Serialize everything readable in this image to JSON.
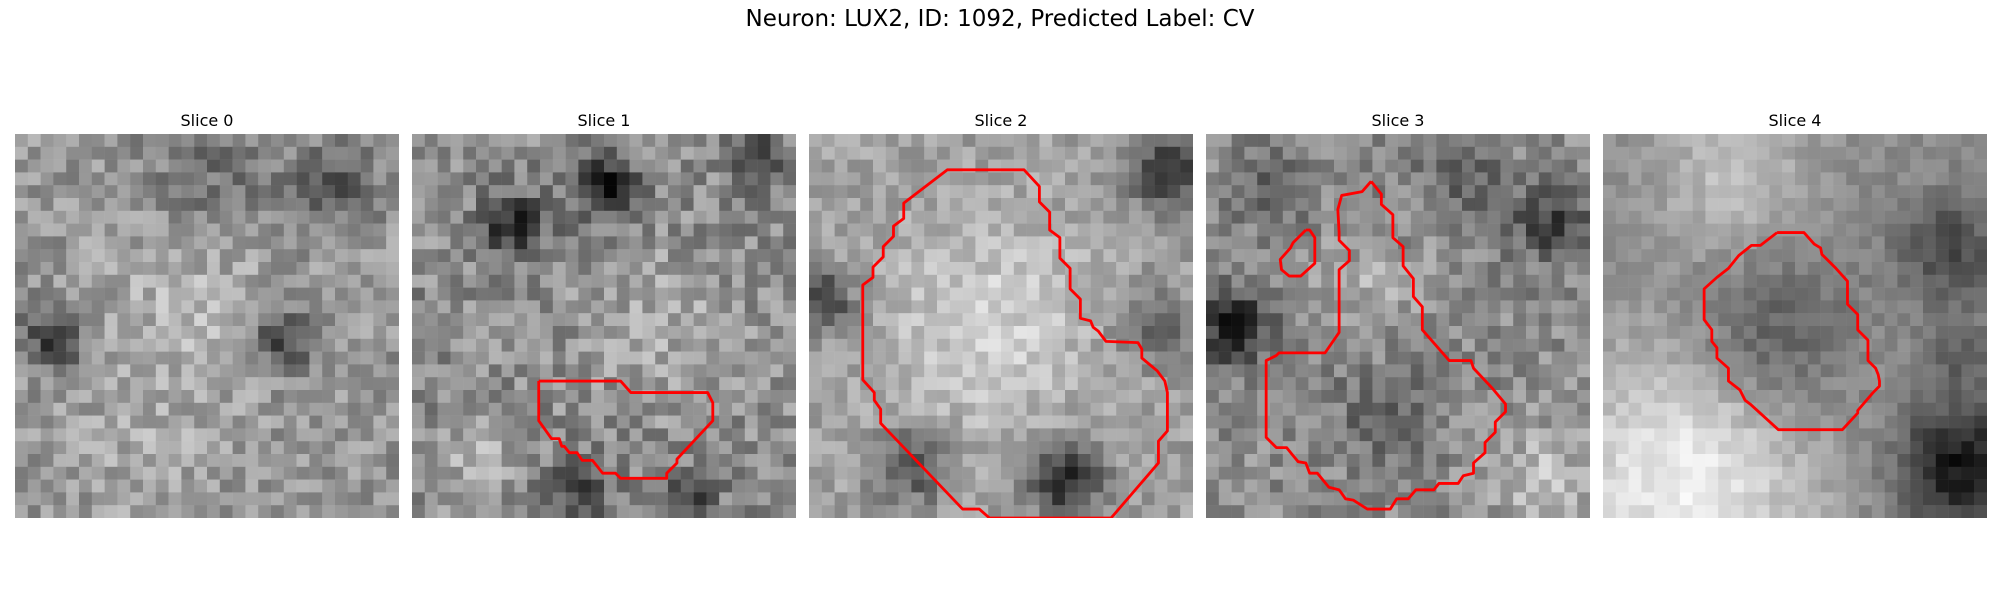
{
  "title": "Neuron: LUX2, ID: 1092, Predicted Label: CV",
  "contour_color": "#ff0000",
  "panels": [
    {
      "title": "Slice 0",
      "contours": []
    },
    {
      "title": "Slice 1",
      "contours": [
        [
          [
            9.9,
            19.3
          ],
          [
            16.3,
            19.3
          ],
          [
            17.1,
            20.2
          ],
          [
            23.1,
            20.2
          ],
          [
            23.5,
            21.0
          ],
          [
            23.5,
            22.4
          ],
          [
            20.7,
            25.4
          ],
          [
            20.7,
            25.7
          ],
          [
            19.9,
            26.5
          ],
          [
            19.9,
            26.9
          ],
          [
            16.3,
            26.9
          ],
          [
            15.9,
            26.5
          ],
          [
            14.9,
            26.5
          ],
          [
            14.1,
            25.5
          ],
          [
            13.3,
            25.5
          ],
          [
            12.9,
            24.9
          ],
          [
            12.3,
            24.9
          ],
          [
            11.9,
            24.4
          ],
          [
            11.7,
            24.4
          ],
          [
            11.5,
            23.8
          ],
          [
            10.9,
            23.8
          ],
          [
            9.9,
            22.4
          ],
          [
            9.9,
            19.3
          ]
        ]
      ]
    },
    {
      "title": "Slice 2",
      "contours": [
        [
          [
            13.8,
            2.8
          ],
          [
            16.8,
            2.8
          ],
          [
            18.0,
            4.1
          ],
          [
            18.0,
            5.3
          ],
          [
            18.8,
            6.1
          ],
          [
            18.8,
            7.5
          ],
          [
            19.6,
            8.1
          ],
          [
            19.6,
            9.7
          ],
          [
            20.4,
            10.5
          ],
          [
            20.4,
            12.1
          ],
          [
            21.2,
            12.9
          ],
          [
            21.2,
            14.4
          ],
          [
            22.0,
            14.6
          ],
          [
            22.2,
            15.1
          ],
          [
            22.6,
            15.4
          ],
          [
            23.2,
            16.2
          ],
          [
            25.7,
            16.3
          ],
          [
            26.0,
            16.8
          ],
          [
            26.0,
            17.5
          ],
          [
            27.2,
            18.5
          ],
          [
            27.8,
            19.3
          ],
          [
            28.0,
            20.2
          ],
          [
            28.0,
            23.2
          ],
          [
            27.3,
            24.0
          ],
          [
            27.3,
            25.7
          ],
          [
            23.6,
            30.0
          ],
          [
            14.1,
            30.0
          ],
          [
            13.3,
            29.3
          ],
          [
            12.0,
            29.3
          ],
          [
            5.6,
            22.6
          ],
          [
            5.6,
            21.5
          ],
          [
            5.1,
            20.8
          ],
          [
            5.1,
            20.2
          ],
          [
            4.2,
            19.2
          ],
          [
            4.2,
            11.8
          ],
          [
            5.0,
            11.2
          ],
          [
            5.0,
            10.4
          ],
          [
            5.8,
            9.6
          ],
          [
            5.8,
            8.8
          ],
          [
            6.6,
            8.0
          ],
          [
            6.6,
            7.2
          ],
          [
            7.4,
            6.6
          ],
          [
            7.4,
            5.4
          ],
          [
            10.8,
            2.8
          ],
          [
            13.8,
            2.8
          ]
        ]
      ]
    },
    {
      "title": "Slice 3",
      "contours": [
        [
          [
            12.9,
            3.7
          ],
          [
            13.7,
            4.7
          ],
          [
            13.7,
            5.5
          ],
          [
            14.6,
            6.3
          ],
          [
            14.6,
            8.1
          ],
          [
            15.4,
            8.8
          ],
          [
            15.4,
            10.3
          ],
          [
            16.2,
            11.3
          ],
          [
            16.2,
            12.7
          ],
          [
            16.9,
            13.5
          ],
          [
            16.9,
            15.3
          ],
          [
            19.0,
            17.7
          ],
          [
            20.7,
            17.7
          ],
          [
            20.9,
            18.3
          ],
          [
            22.4,
            19.9
          ],
          [
            23.4,
            21.1
          ],
          [
            23.4,
            21.7
          ],
          [
            22.6,
            22.5
          ],
          [
            22.6,
            23.3
          ],
          [
            21.8,
            24.1
          ],
          [
            21.8,
            24.9
          ],
          [
            20.9,
            25.7
          ],
          [
            20.9,
            26.5
          ],
          [
            20.1,
            26.7
          ],
          [
            19.7,
            27.3
          ],
          [
            18.2,
            27.3
          ],
          [
            17.8,
            27.8
          ],
          [
            16.4,
            27.8
          ],
          [
            15.8,
            28.5
          ],
          [
            14.9,
            28.5
          ],
          [
            14.4,
            29.3
          ],
          [
            12.6,
            29.3
          ],
          [
            11.5,
            28.6
          ],
          [
            10.9,
            28.5
          ],
          [
            10.4,
            27.8
          ],
          [
            9.6,
            27.6
          ],
          [
            8.7,
            26.5
          ],
          [
            8.1,
            26.5
          ],
          [
            7.8,
            25.7
          ],
          [
            7.2,
            25.6
          ],
          [
            6.7,
            25.0
          ],
          [
            6.3,
            24.5
          ],
          [
            5.5,
            24.5
          ],
          [
            4.7,
            23.7
          ],
          [
            4.7,
            17.7
          ],
          [
            5.5,
            17.3
          ],
          [
            5.7,
            17.1
          ],
          [
            9.3,
            17.1
          ],
          [
            10.4,
            15.5
          ],
          [
            10.4,
            10.6
          ],
          [
            11.2,
            9.9
          ],
          [
            11.2,
            9.1
          ],
          [
            10.4,
            8.3
          ],
          [
            10.4,
            7.7
          ],
          [
            10.3,
            5.9
          ],
          [
            10.6,
            4.8
          ],
          [
            12.2,
            4.5
          ],
          [
            12.9,
            3.7
          ]
        ],
        [
          [
            7.8,
            7.5
          ],
          [
            8.1,
            7.5
          ],
          [
            8.5,
            8.1
          ],
          [
            8.5,
            10.1
          ],
          [
            7.4,
            11.1
          ],
          [
            6.5,
            11.1
          ],
          [
            5.9,
            10.6
          ],
          [
            5.8,
            9.8
          ],
          [
            6.6,
            8.9
          ],
          [
            6.8,
            8.5
          ],
          [
            7.8,
            7.5
          ]
        ]
      ]
    },
    {
      "title": "Slice 4",
      "contours": [
        [
          [
            13.6,
            7.7
          ],
          [
            15.7,
            7.7
          ],
          [
            16.5,
            8.6
          ],
          [
            17.0,
            8.9
          ],
          [
            17.1,
            9.4
          ],
          [
            17.8,
            10.1
          ],
          [
            18.2,
            10.5
          ],
          [
            19.1,
            11.5
          ],
          [
            19.1,
            13.3
          ],
          [
            19.9,
            14.1
          ],
          [
            19.9,
            15.3
          ],
          [
            20.7,
            16.1
          ],
          [
            20.7,
            17.7
          ],
          [
            21.3,
            18.3
          ],
          [
            21.5,
            18.8
          ],
          [
            21.6,
            19.3
          ],
          [
            21.6,
            19.7
          ],
          [
            21.1,
            20.2
          ],
          [
            19.9,
            21.6
          ],
          [
            19.9,
            21.8
          ],
          [
            18.7,
            23.1
          ],
          [
            13.7,
            23.1
          ],
          [
            11.5,
            21.1
          ],
          [
            11.1,
            20.8
          ],
          [
            10.7,
            20.0
          ],
          [
            9.8,
            19.3
          ],
          [
            9.8,
            18.3
          ],
          [
            8.9,
            17.5
          ],
          [
            8.9,
            16.7
          ],
          [
            8.5,
            16.2
          ],
          [
            8.5,
            15.3
          ],
          [
            7.9,
            14.5
          ],
          [
            7.9,
            12.1
          ],
          [
            8.9,
            11.2
          ],
          [
            9.8,
            10.5
          ],
          [
            10.6,
            9.5
          ],
          [
            11.6,
            8.7
          ],
          [
            12.3,
            8.7
          ],
          [
            13.6,
            7.7
          ]
        ]
      ]
    }
  ]
}
